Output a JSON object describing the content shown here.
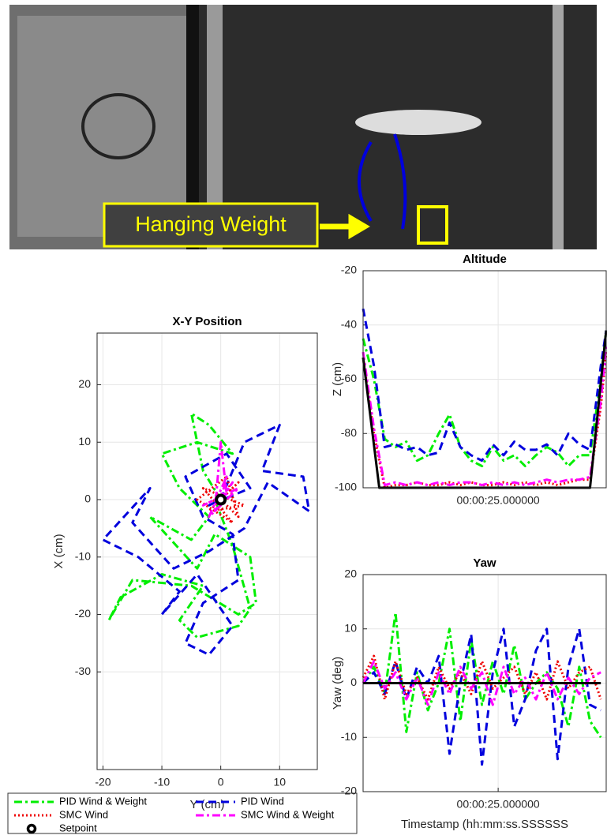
{
  "photo": {
    "label": "Hanging Weight"
  },
  "chart_data": [
    {
      "type": "line",
      "title": "X-Y Position",
      "x_label": "Y (cm)",
      "y_label": "X (cm)",
      "xlim": [
        -21,
        16.4
      ],
      "xticks": [
        -20,
        -10,
        0,
        10
      ],
      "ylim": [
        -47,
        29
      ],
      "yticks": [
        -30,
        -20,
        -10,
        0,
        10,
        20
      ],
      "grid": true,
      "series": [
        {
          "name": "PID Wind & Weight",
          "color": "#00ee00",
          "style": "dashdot",
          "x": [
            0,
            -3,
            -5,
            -2,
            2,
            -4,
            -10,
            -7,
            -2,
            -5,
            -12,
            -4,
            -1,
            5,
            6,
            3,
            -5,
            -15,
            -19,
            -17,
            -10,
            -3,
            -7,
            -4,
            3,
            5,
            2,
            -1
          ],
          "values": [
            0,
            5,
            15,
            13,
            8,
            10,
            8,
            2,
            -3,
            -7,
            -3,
            -12,
            -6,
            -10,
            -18,
            -20,
            -15,
            -14,
            -21,
            -17,
            -13,
            -15,
            -21,
            -24,
            -22,
            -19,
            -8,
            0
          ]
        },
        {
          "name": "PID Wind",
          "color": "#0000dd",
          "style": "dash",
          "x": [
            0,
            4,
            10,
            7,
            14,
            15,
            8,
            4,
            -2,
            -8,
            -15,
            -12,
            -20,
            -14,
            -7,
            -10,
            -4,
            2,
            -2,
            -6,
            -3,
            3,
            2,
            -3,
            -6,
            1,
            5,
            -2,
            0
          ],
          "values": [
            0,
            10,
            13,
            5,
            4,
            -2,
            3,
            -5,
            -9,
            -12,
            -4,
            2,
            -7,
            -10,
            -16,
            -20,
            -13,
            -22,
            -27,
            -25,
            -18,
            -14,
            -6,
            -3,
            4,
            8,
            2,
            -1,
            0
          ]
        },
        {
          "name": "SMC Wind",
          "color": "#ee0000",
          "style": "dot",
          "x": [
            0,
            3,
            -2,
            4,
            -3,
            2,
            -4,
            1,
            3,
            -1,
            0
          ],
          "values": [
            0,
            3,
            -2,
            -1,
            2,
            -4,
            0,
            4,
            -3,
            1,
            0
          ]
        },
        {
          "name": "SMC Wind & Weight",
          "color": "#ff00ff",
          "style": "dashdot",
          "x": [
            0,
            2,
            -1,
            0,
            1,
            -3,
            3,
            -2,
            1,
            0
          ],
          "values": [
            0,
            3,
            -2,
            10,
            1,
            -1,
            2,
            -3,
            4,
            0
          ]
        },
        {
          "name": "Setpoint",
          "color": "#000000",
          "style": "marker",
          "x": [
            0
          ],
          "values": [
            0
          ]
        }
      ]
    },
    {
      "type": "line",
      "title": "Altitude",
      "y_label": "Z (cm)",
      "xlim": [
        0,
        45
      ],
      "xticks": [
        {
          "value": 25,
          "label": "00:00:25.000000"
        }
      ],
      "ylim": [
        -100,
        -20
      ],
      "yticks": [
        -100,
        -80,
        -60,
        -40,
        -20
      ],
      "grid": true,
      "series": [
        {
          "color": "#00ee00",
          "style": "dashdot",
          "x": [
            0,
            2,
            4,
            6,
            8,
            10,
            12,
            14,
            16,
            18,
            20,
            22,
            24,
            26,
            28,
            30,
            32,
            34,
            36,
            38,
            40,
            42,
            44,
            45
          ],
          "values": [
            -45,
            -60,
            -82,
            -85,
            -83,
            -90,
            -88,
            -80,
            -73,
            -85,
            -90,
            -92,
            -85,
            -90,
            -88,
            -92,
            -88,
            -85,
            -87,
            -92,
            -88,
            -88,
            -60,
            -42
          ]
        },
        {
          "color": "#0000dd",
          "style": "dash",
          "x": [
            0,
            2,
            4,
            6,
            8,
            10,
            12,
            14,
            16,
            18,
            20,
            22,
            24,
            26,
            28,
            30,
            32,
            34,
            36,
            38,
            40,
            42,
            44,
            45
          ],
          "values": [
            -34,
            -55,
            -85,
            -84,
            -86,
            -85,
            -88,
            -87,
            -76,
            -85,
            -88,
            -90,
            -84,
            -88,
            -83,
            -86,
            -86,
            -84,
            -88,
            -80,
            -84,
            -86,
            -55,
            -42
          ]
        },
        {
          "color": "#ee0000",
          "style": "dot",
          "x": [
            0,
            2,
            4,
            6,
            8,
            10,
            12,
            14,
            16,
            18,
            20,
            22,
            24,
            26,
            28,
            30,
            32,
            34,
            36,
            38,
            40,
            42,
            44,
            45
          ],
          "values": [
            -52,
            -80,
            -100,
            -99,
            -99,
            -98,
            -99,
            -99,
            -98,
            -99,
            -98,
            -99,
            -99,
            -98,
            -99,
            -98,
            -99,
            -98,
            -99,
            -98,
            -97,
            -97,
            -70,
            -50
          ]
        },
        {
          "color": "#ff00ff",
          "style": "dashdot",
          "x": [
            0,
            2,
            4,
            6,
            8,
            10,
            12,
            14,
            16,
            18,
            20,
            22,
            24,
            26,
            28,
            30,
            32,
            34,
            36,
            38,
            40,
            42,
            44,
            45
          ],
          "values": [
            -50,
            -78,
            -99,
            -98,
            -99,
            -98,
            -99,
            -98,
            -99,
            -98,
            -98,
            -99,
            -98,
            -99,
            -98,
            -99,
            -98,
            -97,
            -98,
            -97,
            -97,
            -96,
            -68,
            -48
          ]
        },
        {
          "color": "#000000",
          "style": "solid",
          "x": [
            0,
            3,
            42,
            45
          ],
          "values": [
            -52,
            -100,
            -100,
            -42
          ]
        }
      ]
    },
    {
      "type": "line",
      "title": "Yaw",
      "x_label": "Timestamp (hh:mm:ss.SSSSSS",
      "y_label": "Yaw (deg)",
      "xlim": [
        0,
        45
      ],
      "xticks": [
        {
          "value": 25,
          "label": "00:00:25.000000"
        }
      ],
      "ylim": [
        -20,
        20
      ],
      "yticks": [
        -20,
        -10,
        0,
        10,
        20
      ],
      "grid": true,
      "series": [
        {
          "color": "#00ee00",
          "style": "dashdot",
          "x": [
            0,
            2,
            4,
            6,
            8,
            10,
            12,
            14,
            16,
            18,
            20,
            22,
            24,
            26,
            28,
            30,
            32,
            34,
            36,
            38,
            40,
            42,
            44
          ],
          "values": [
            0,
            3,
            -2,
            13,
            -9,
            2,
            -5,
            0,
            10,
            -7,
            8,
            -4,
            4,
            -2,
            7,
            -3,
            0,
            2,
            -1,
            -8,
            3,
            -7,
            -10
          ]
        },
        {
          "color": "#0000dd",
          "style": "dash",
          "x": [
            0,
            2,
            4,
            6,
            8,
            10,
            12,
            14,
            16,
            18,
            20,
            22,
            24,
            26,
            28,
            30,
            32,
            34,
            36,
            38,
            40,
            42,
            44
          ],
          "values": [
            0,
            2,
            -2,
            4,
            -3,
            3,
            0,
            5,
            -13,
            0,
            9,
            -15,
            2,
            10,
            -8,
            -3,
            6,
            10,
            -14,
            3,
            10,
            -4,
            -5
          ]
        },
        {
          "color": "#ee0000",
          "style": "dot",
          "x": [
            0,
            2,
            4,
            6,
            8,
            10,
            12,
            14,
            16,
            18,
            20,
            22,
            24,
            26,
            28,
            30,
            32,
            34,
            36,
            38,
            40,
            42,
            44
          ],
          "values": [
            1,
            5,
            -3,
            4,
            -2,
            1,
            -3,
            3,
            -1,
            2,
            -2,
            4,
            -1,
            1,
            3,
            -2,
            2,
            -3,
            4,
            -1,
            2,
            3,
            -3
          ]
        },
        {
          "color": "#ff00ff",
          "style": "dashdot",
          "x": [
            0,
            2,
            4,
            6,
            8,
            10,
            12,
            14,
            16,
            18,
            20,
            22,
            24,
            26,
            28,
            30,
            32,
            34,
            36,
            38,
            40,
            42,
            44
          ],
          "values": [
            0,
            4,
            -1,
            2,
            -3,
            1,
            -4,
            2,
            -2,
            3,
            -1,
            2,
            -4,
            3,
            -2,
            1,
            -3,
            2,
            -3,
            1,
            -2,
            1,
            2
          ]
        },
        {
          "color": "#000000",
          "style": "solid",
          "x": [
            0,
            44
          ],
          "values": [
            0,
            0
          ]
        }
      ]
    }
  ]
}
